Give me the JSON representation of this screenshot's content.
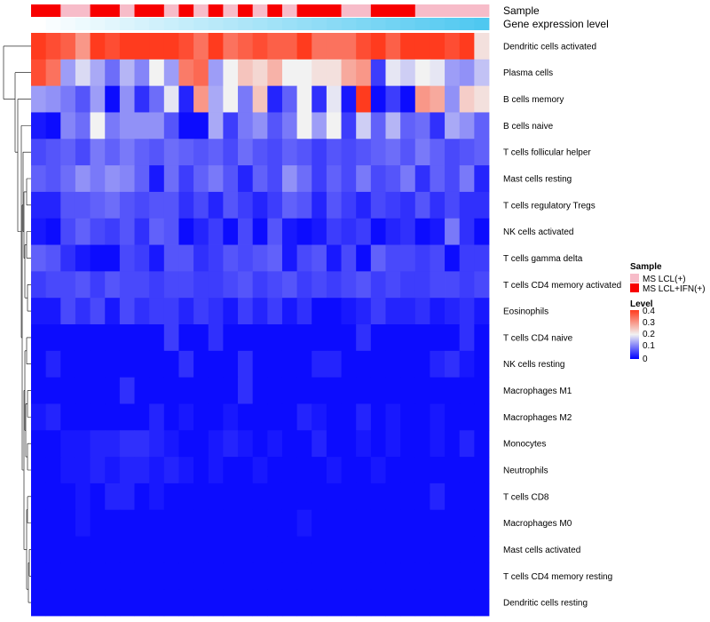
{
  "chart_data": {
    "type": "heatmap",
    "title": "",
    "rows": [
      "Dendritic cells activated",
      "Plasma cells",
      "B cells memory",
      "B cells naive",
      "T cells follicular helper",
      "Mast cells resting",
      "T cells regulatory  Tregs",
      "NK cells activated",
      "T cells gamma delta",
      "T cells CD4 memory activated",
      "Eosinophils",
      "T cells CD4 naive",
      "NK cells resting",
      "Macrophages M1",
      "Macrophages M2",
      "Monocytes",
      "Neutrophils",
      "T cells CD8",
      "Macrophages M0",
      "Mast cells activated",
      "T cells CD4 memory resting",
      "Dendritic cells resting"
    ],
    "n_columns": 31,
    "values": [
      [
        0.4,
        0.38,
        0.36,
        0.3,
        0.4,
        0.38,
        0.4,
        0.4,
        0.4,
        0.4,
        0.38,
        0.34,
        0.4,
        0.34,
        0.36,
        0.38,
        0.36,
        0.36,
        0.4,
        0.34,
        0.34,
        0.34,
        0.38,
        0.4,
        0.36,
        0.4,
        0.4,
        0.4,
        0.38,
        0.4,
        0.22
      ],
      [
        0.38,
        0.34,
        0.13,
        0.18,
        0.14,
        0.09,
        0.15,
        0.11,
        0.2,
        0.13,
        0.33,
        0.35,
        0.13,
        0.2,
        0.25,
        0.23,
        0.27,
        0.2,
        0.2,
        0.22,
        0.22,
        0.28,
        0.3,
        0.05,
        0.19,
        0.17,
        0.2,
        0.19,
        0.13,
        0.12,
        0.16
      ],
      [
        0.13,
        0.12,
        0.1,
        0.07,
        0.13,
        0.01,
        0.12,
        0.04,
        0.09,
        0.19,
        0.03,
        0.3,
        0.14,
        0.2,
        0.1,
        0.25,
        0.03,
        0.08,
        0.2,
        0.04,
        0.19,
        0.02,
        0.4,
        0.01,
        0.05,
        0.01,
        0.3,
        0.28,
        0.12,
        0.24,
        0.22
      ],
      [
        0.02,
        0.01,
        0.11,
        0.09,
        0.2,
        0.1,
        0.12,
        0.12,
        0.12,
        0.07,
        0.01,
        0.01,
        0.14,
        0.05,
        0.1,
        0.12,
        0.07,
        0.1,
        0.2,
        0.13,
        0.2,
        0.05,
        0.17,
        0.08,
        0.15,
        0.08,
        0.09,
        0.04,
        0.14,
        0.12,
        0.08
      ],
      [
        0.06,
        0.07,
        0.08,
        0.06,
        0.1,
        0.08,
        0.1,
        0.08,
        0.07,
        0.09,
        0.08,
        0.07,
        0.08,
        0.06,
        0.09,
        0.07,
        0.06,
        0.08,
        0.07,
        0.05,
        0.07,
        0.06,
        0.07,
        0.08,
        0.09,
        0.07,
        0.1,
        0.08,
        0.06,
        0.07,
        0.08
      ],
      [
        0.08,
        0.07,
        0.09,
        0.12,
        0.1,
        0.12,
        0.11,
        0.08,
        0.02,
        0.09,
        0.05,
        0.08,
        0.1,
        0.07,
        0.03,
        0.08,
        0.06,
        0.12,
        0.09,
        0.05,
        0.08,
        0.06,
        0.1,
        0.06,
        0.07,
        0.1,
        0.04,
        0.08,
        0.06,
        0.1,
        0.03
      ],
      [
        0.03,
        0.03,
        0.07,
        0.07,
        0.08,
        0.09,
        0.07,
        0.06,
        0.07,
        0.07,
        0.04,
        0.06,
        0.03,
        0.07,
        0.05,
        0.03,
        0.05,
        0.08,
        0.07,
        0.03,
        0.07,
        0.05,
        0.03,
        0.06,
        0.05,
        0.04,
        0.07,
        0.04,
        0.06,
        0.04,
        0.04
      ],
      [
        0.02,
        0.01,
        0.06,
        0.08,
        0.06,
        0.05,
        0.07,
        0.04,
        0.08,
        0.07,
        0.01,
        0.03,
        0.05,
        0.01,
        0.06,
        0.01,
        0.07,
        0.02,
        0.01,
        0.02,
        0.05,
        0.04,
        0.05,
        0.01,
        0.03,
        0.04,
        0.01,
        0.02,
        0.1,
        0.04,
        0.01
      ],
      [
        0.08,
        0.07,
        0.04,
        0.02,
        0.01,
        0.01,
        0.06,
        0.05,
        0.02,
        0.07,
        0.07,
        0.04,
        0.05,
        0.07,
        0.06,
        0.07,
        0.08,
        0.02,
        0.06,
        0.07,
        0.02,
        0.06,
        0.01,
        0.08,
        0.06,
        0.06,
        0.05,
        0.06,
        0.01,
        0.05,
        0.05
      ],
      [
        0.05,
        0.06,
        0.06,
        0.07,
        0.05,
        0.07,
        0.06,
        0.06,
        0.05,
        0.06,
        0.06,
        0.05,
        0.05,
        0.06,
        0.07,
        0.05,
        0.06,
        0.07,
        0.05,
        0.06,
        0.05,
        0.06,
        0.07,
        0.05,
        0.06,
        0.05,
        0.05,
        0.06,
        0.06,
        0.05,
        0.06
      ],
      [
        0.02,
        0.02,
        0.06,
        0.04,
        0.06,
        0.02,
        0.06,
        0.04,
        0.05,
        0.05,
        0.03,
        0.05,
        0.04,
        0.02,
        0.05,
        0.03,
        0.05,
        0.02,
        0.04,
        0.01,
        0.01,
        0.02,
        0.03,
        0.05,
        0.03,
        0.03,
        0.04,
        0.02,
        0.03,
        0.04,
        0.02
      ],
      [
        0.01,
        0.01,
        0.01,
        0.01,
        0.01,
        0.01,
        0.01,
        0.01,
        0.01,
        0.05,
        0.01,
        0.01,
        0.04,
        0.01,
        0.01,
        0.01,
        0.01,
        0.01,
        0.01,
        0.01,
        0.01,
        0.01,
        0.04,
        0.01,
        0.01,
        0.01,
        0.01,
        0.01,
        0.01,
        0.04,
        0.01
      ],
      [
        0.01,
        0.03,
        0.01,
        0.01,
        0.01,
        0.01,
        0.01,
        0.01,
        0.01,
        0.01,
        0.04,
        0.01,
        0.01,
        0.01,
        0.04,
        0.01,
        0.01,
        0.01,
        0.01,
        0.03,
        0.03,
        0.01,
        0.01,
        0.01,
        0.01,
        0.01,
        0.01,
        0.03,
        0.04,
        0.02,
        0.01
      ],
      [
        0.01,
        0.01,
        0.01,
        0.01,
        0.01,
        0.01,
        0.04,
        0.01,
        0.01,
        0.01,
        0.01,
        0.01,
        0.01,
        0.01,
        0.04,
        0.01,
        0.01,
        0.01,
        0.01,
        0.01,
        0.01,
        0.01,
        0.01,
        0.01,
        0.01,
        0.01,
        0.01,
        0.01,
        0.01,
        0.01,
        0.01
      ],
      [
        0.02,
        0.03,
        0.01,
        0.01,
        0.01,
        0.01,
        0.01,
        0.01,
        0.03,
        0.01,
        0.02,
        0.01,
        0.01,
        0.02,
        0.01,
        0.01,
        0.01,
        0.01,
        0.03,
        0.02,
        0.01,
        0.01,
        0.03,
        0.01,
        0.02,
        0.01,
        0.01,
        0.02,
        0.01,
        0.01,
        0.01
      ],
      [
        0.01,
        0.01,
        0.02,
        0.02,
        0.03,
        0.03,
        0.04,
        0.04,
        0.03,
        0.02,
        0.01,
        0.01,
        0.02,
        0.03,
        0.02,
        0.01,
        0.02,
        0.01,
        0.01,
        0.03,
        0.01,
        0.01,
        0.02,
        0.01,
        0.02,
        0.01,
        0.01,
        0.02,
        0.01,
        0.03,
        0.01
      ],
      [
        0.01,
        0.01,
        0.02,
        0.02,
        0.03,
        0.02,
        0.03,
        0.03,
        0.02,
        0.03,
        0.02,
        0.01,
        0.02,
        0.01,
        0.01,
        0.02,
        0.01,
        0.01,
        0.01,
        0.01,
        0.02,
        0.01,
        0.01,
        0.02,
        0.01,
        0.01,
        0.01,
        0.01,
        0.01,
        0.01,
        0.01
      ],
      [
        0.01,
        0.01,
        0.01,
        0.02,
        0.01,
        0.03,
        0.03,
        0.01,
        0.02,
        0.01,
        0.01,
        0.01,
        0.01,
        0.01,
        0.01,
        0.01,
        0.01,
        0.01,
        0.01,
        0.01,
        0.01,
        0.01,
        0.01,
        0.01,
        0.01,
        0.01,
        0.01,
        0.03,
        0.01,
        0.01,
        0.01
      ],
      [
        0.01,
        0.01,
        0.01,
        0.02,
        0.01,
        0.01,
        0.01,
        0.01,
        0.01,
        0.01,
        0.01,
        0.01,
        0.01,
        0.01,
        0.01,
        0.01,
        0.01,
        0.01,
        0.02,
        0.01,
        0.01,
        0.01,
        0.01,
        0.01,
        0.01,
        0.01,
        0.01,
        0.01,
        0.01,
        0.01,
        0.01
      ],
      [
        0.01,
        0.01,
        0.01,
        0.01,
        0.01,
        0.01,
        0.01,
        0.01,
        0.01,
        0.01,
        0.01,
        0.01,
        0.01,
        0.01,
        0.01,
        0.01,
        0.01,
        0.01,
        0.01,
        0.01,
        0.01,
        0.01,
        0.01,
        0.01,
        0.01,
        0.01,
        0.01,
        0.01,
        0.01,
        0.01,
        0.01
      ],
      [
        0.01,
        0.01,
        0.01,
        0.01,
        0.01,
        0.01,
        0.01,
        0.01,
        0.01,
        0.01,
        0.01,
        0.01,
        0.01,
        0.01,
        0.01,
        0.01,
        0.01,
        0.01,
        0.01,
        0.01,
        0.01,
        0.01,
        0.01,
        0.01,
        0.01,
        0.01,
        0.01,
        0.01,
        0.01,
        0.01,
        0.01
      ],
      [
        0.01,
        0.01,
        0.01,
        0.01,
        0.01,
        0.01,
        0.01,
        0.01,
        0.01,
        0.01,
        0.01,
        0.01,
        0.01,
        0.01,
        0.01,
        0.01,
        0.01,
        0.01,
        0.01,
        0.01,
        0.01,
        0.01,
        0.01,
        0.01,
        0.01,
        0.01,
        0.01,
        0.01,
        0.01,
        0.01,
        0.01
      ]
    ],
    "annotations": [
      {
        "name": "Sample",
        "categories": [
          "MS LCL(+)",
          "MS LCL+IFN(+)"
        ],
        "colors": [
          "#f7bcc9",
          "#f80000"
        ],
        "values": [
          1,
          1,
          0,
          0,
          1,
          1,
          0,
          1,
          1,
          0,
          1,
          0,
          1,
          0,
          1,
          0,
          1,
          0,
          1,
          1,
          1,
          0,
          0,
          1,
          1,
          1,
          0,
          0,
          0,
          0,
          0
        ]
      },
      {
        "name": "Gene expression level",
        "gradient": [
          "#ffffff",
          "#4fc8f0"
        ]
      }
    ],
    "legend": {
      "sample_title": "Sample",
      "level_title": "Level",
      "level_ticks": [
        "0.4",
        "0.3",
        "0.2",
        "0.1",
        "0"
      ],
      "level_range": [
        0,
        0.4
      ],
      "colors": {
        "low": "#0000ff",
        "mid": "#f2f2f2",
        "high": "#ff3b1e"
      },
      "placement": "right"
    }
  }
}
